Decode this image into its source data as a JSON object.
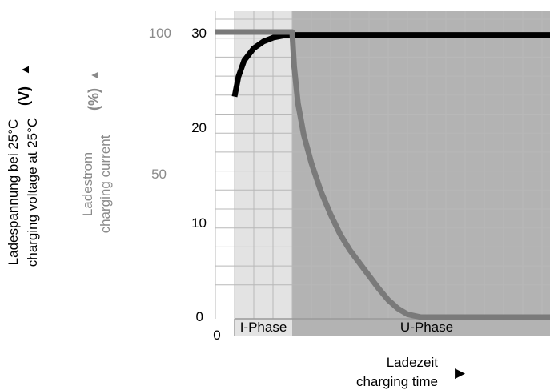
{
  "chart_data": {
    "type": "line",
    "title": "",
    "y_left_voltage": {
      "label_lines": [
        "Ladespannung bei 25°C",
        "charging voltage at 25°C"
      ],
      "unit": "(V)",
      "arrow": "▲",
      "ticks": [
        "30",
        "20",
        "10",
        "0"
      ],
      "ylim": [
        0,
        30
      ],
      "color": "#000000"
    },
    "y_left_current": {
      "label_lines": [
        "Ladestrom",
        "charging current"
      ],
      "unit": "(%)",
      "arrow": "▲",
      "ticks": [
        "100",
        "50"
      ],
      "ylim": [
        0,
        100
      ],
      "color": "#8a8a8a"
    },
    "x_axis": {
      "label_lines": [
        "Ladezeit",
        "charging time"
      ],
      "arrow": "▶",
      "origin_label": "0"
    },
    "phases": [
      {
        "label": "I-Phase",
        "x_range": [
          0,
          3
        ],
        "color": "#e3e3e3"
      },
      {
        "label": "U-Phase",
        "x_range": [
          3,
          16.5
        ],
        "color": "#b3b3b3"
      }
    ],
    "series": [
      {
        "name": "",
        "axis": "voltage",
        "color": "#000000",
        "x": [
          0,
          0.2,
          0.5,
          1.0,
          1.5,
          2.0,
          2.5,
          3.0,
          16.5
        ],
        "y": [
          23.2,
          25.3,
          27.0,
          28.3,
          29.0,
          29.4,
          29.6,
          29.7,
          29.7
        ]
      },
      {
        "name": "",
        "axis": "current",
        "color": "#7a7a7a",
        "x": [
          -2.2,
          0,
          1,
          2,
          3.0,
          3.1,
          3.3,
          3.6,
          4.0,
          4.5,
          5.0,
          5.5,
          6.0,
          6.5,
          7.0,
          7.5,
          8.0,
          8.5,
          9.0,
          9.7,
          16.5
        ],
        "y": [
          100,
          100,
          100,
          100,
          100,
          88,
          75,
          64,
          54,
          44,
          36,
          29,
          23.5,
          19,
          14.5,
          10,
          6,
          3,
          1,
          0,
          0
        ]
      }
    ]
  }
}
